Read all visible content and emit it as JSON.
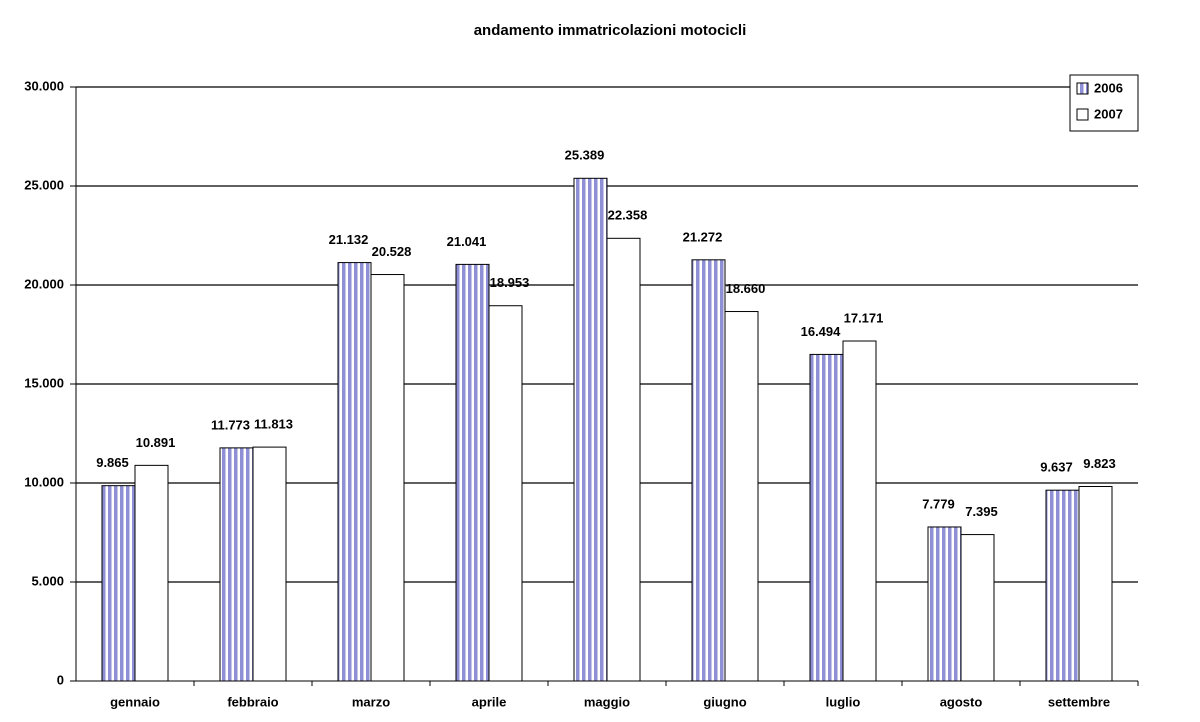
{
  "chart_data": {
    "type": "bar",
    "title": "andamento immatricolazioni motocicli",
    "categories": [
      "gennaio",
      "febbraio",
      "marzo",
      "aprile",
      "maggio",
      "giugno",
      "luglio",
      "agosto",
      "settembre"
    ],
    "series": [
      {
        "name": "2006",
        "color": "#8f8fd6",
        "values": [
          9865,
          11773,
          21132,
          21041,
          25389,
          21272,
          16494,
          7779,
          9637
        ],
        "value_labels": [
          "9.865",
          "11.773",
          "21.132",
          "21.041",
          "25.389",
          "21.272",
          "16.494",
          "7.779",
          "9.637"
        ]
      },
      {
        "name": "2007",
        "color": "#ffffff",
        "values": [
          10891,
          11813,
          20528,
          18953,
          22358,
          18660,
          17171,
          7395,
          9823
        ],
        "value_labels": [
          "10.891",
          "11.813",
          "20.528",
          "18.953",
          "22.358",
          "18.660",
          "17.171",
          "7.395",
          "9.823"
        ]
      }
    ],
    "ylim": [
      0,
      30000
    ],
    "yticks": [
      0,
      {
        "value": 5000,
        "label": "5.000"
      },
      {
        "value": 10000,
        "label": "10.000"
      },
      {
        "value": 15000,
        "label": "15.000"
      },
      {
        "value": 20000,
        "label": "20.000"
      },
      {
        "value": 25000,
        "label": "25.000"
      },
      {
        "value": 30000,
        "label": "30.000"
      }
    ],
    "grid": true,
    "legend": "top-right"
  }
}
